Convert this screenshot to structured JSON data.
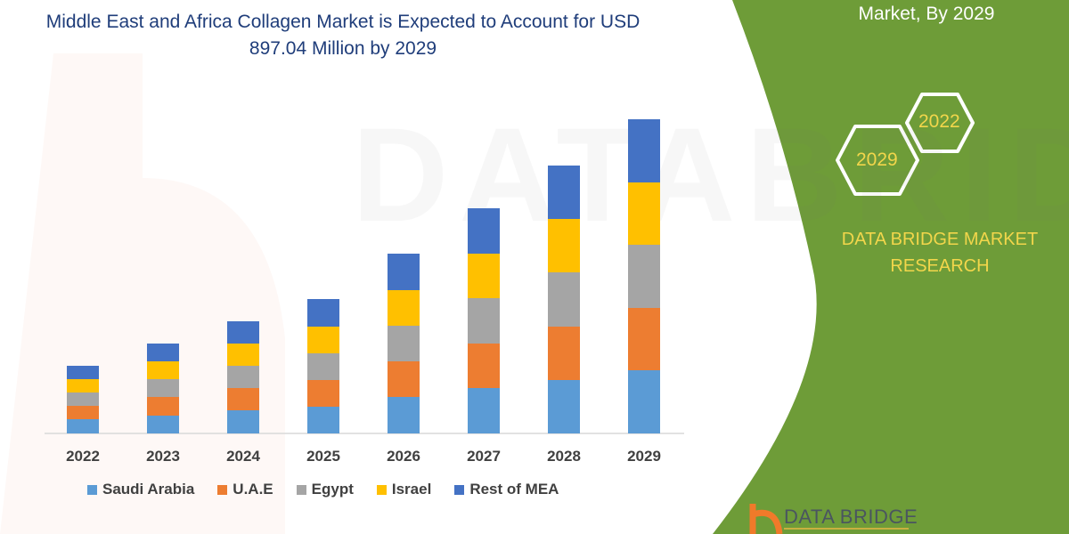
{
  "title": "Middle East and Africa Collagen Market is Expected to Account for USD 897.04 Million by 2029",
  "right_panel": {
    "heading_visible": "Market, By 2029",
    "hex_years": [
      "2022",
      "2029"
    ],
    "brand": "DATA BRIDGE MARKET RESEARCH",
    "logo_text": "DATA BRIDGE",
    "panel_color": "#6e9c38",
    "accent_text_color": "#f2d64b"
  },
  "watermark": "DATABRIDGE",
  "chart_data": {
    "type": "bar",
    "stacked": true,
    "title": "Middle East and Africa Collagen Market is Expected to Account for USD 897.04 Million by 2029",
    "xlabel": "",
    "ylabel": "",
    "y_axis_shown": false,
    "grid": false,
    "legend": "bottom",
    "categories": [
      "2022",
      "2023",
      "2024",
      "2025",
      "2026",
      "2027",
      "2028",
      "2029"
    ],
    "series": [
      {
        "name": "Saudi Arabia",
        "color": "#5b9bd5",
        "values": [
          16,
          20,
          26,
          30,
          41,
          51,
          60,
          71
        ]
      },
      {
        "name": "U.A.E",
        "color": "#ed7d31",
        "values": [
          15,
          21,
          25,
          30,
          40,
          50,
          60,
          70
        ]
      },
      {
        "name": "Egypt",
        "color": "#a5a5a5",
        "values": [
          15,
          20,
          25,
          30,
          40,
          51,
          61,
          71
        ]
      },
      {
        "name": "Israel",
        "color": "#ffc000",
        "values": [
          15,
          20,
          25,
          30,
          40,
          50,
          60,
          70
        ]
      },
      {
        "name": "Rest of MEA",
        "color": "#4472c4",
        "values": [
          15,
          20,
          25,
          31,
          41,
          51,
          60,
          71
        ]
      }
    ]
  }
}
